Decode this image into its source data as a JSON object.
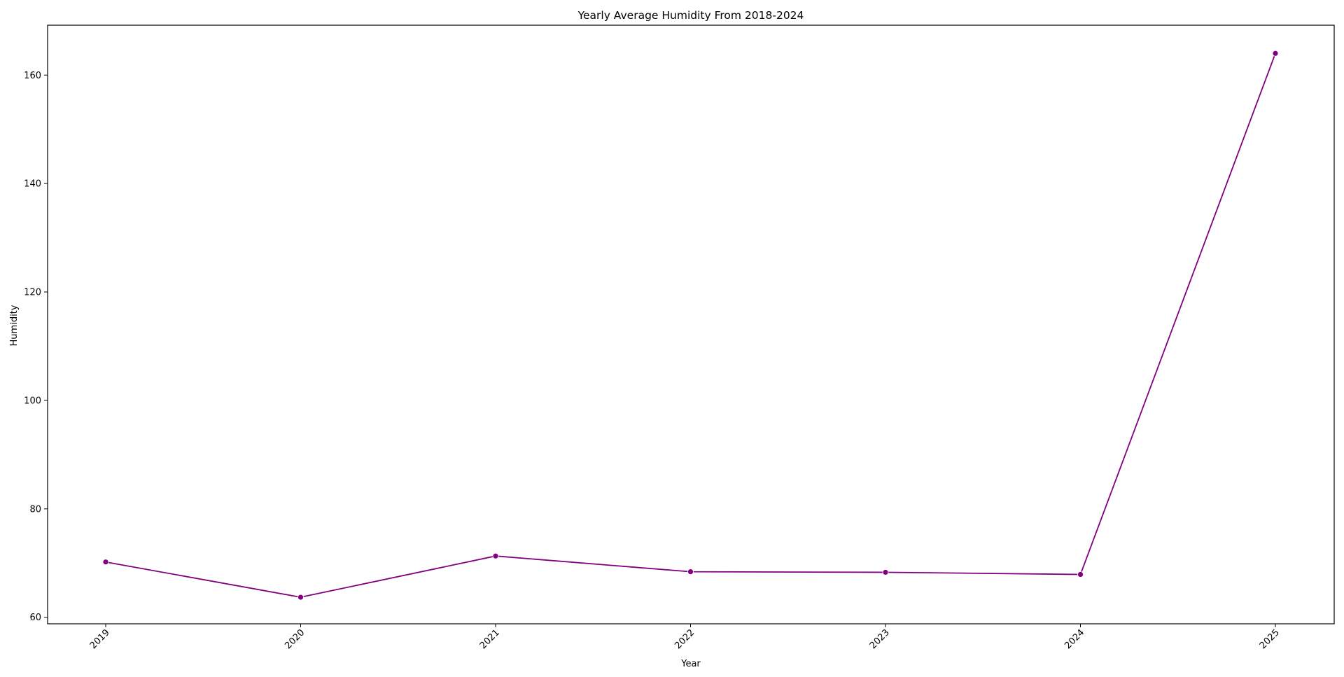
{
  "chart_data": {
    "type": "line",
    "title": "Yearly Average Humidity From 2018-2024",
    "xlabel": "Year",
    "ylabel": "Humidity",
    "x": [
      "2019",
      "2020",
      "2021",
      "2022",
      "2023",
      "2024",
      "2025"
    ],
    "series": [
      {
        "values": [
          70.2,
          63.7,
          71.3,
          68.4,
          68.3,
          67.9,
          164.0
        ],
        "color": "#800080",
        "marker": "circle"
      }
    ],
    "yticks": [
      60,
      80,
      100,
      120,
      140,
      160
    ],
    "ylim": [
      58.8,
      169.2
    ],
    "grid": false,
    "legend": "none"
  }
}
